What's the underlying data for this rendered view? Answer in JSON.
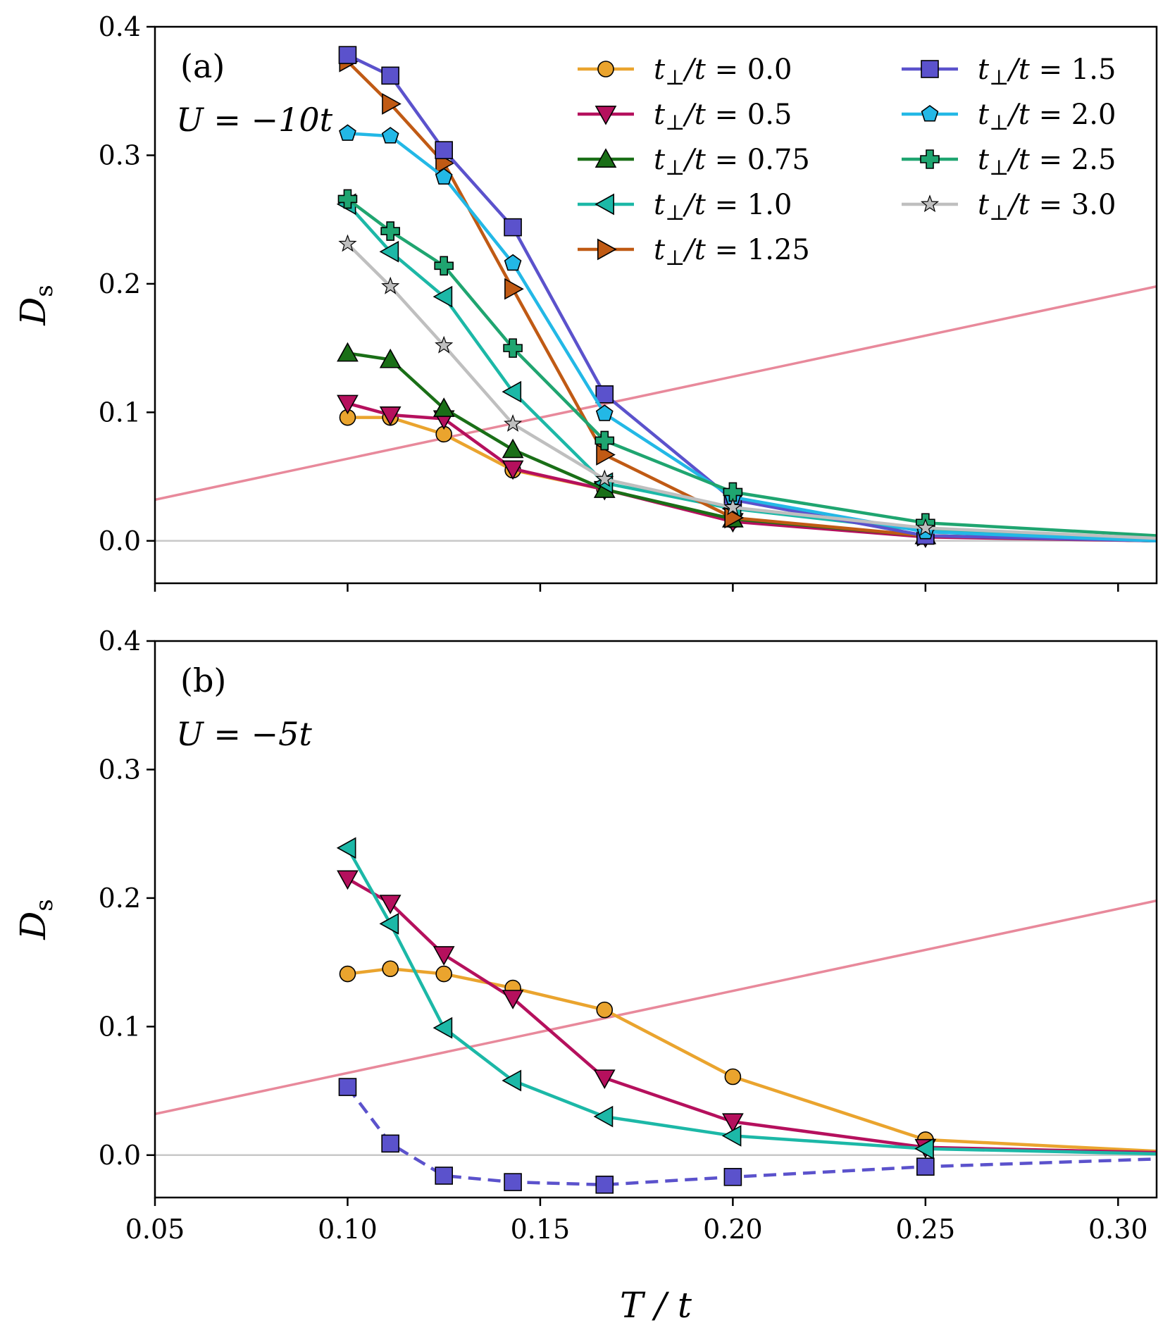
{
  "figure": {
    "xlabel": "T / t",
    "ylabel_main": "D",
    "ylabel_sub": "s",
    "legend_prefix": "t",
    "legend_perp": "⊥",
    "legend_suffix": "/t = "
  },
  "chart_data": [
    {
      "type": "line",
      "panel_label": "(a)",
      "annotation": "U = −10t",
      "xlim": [
        0.05,
        0.31
      ],
      "ylim": [
        -0.033,
        0.4
      ],
      "xticks": [
        "0.05",
        "0.10",
        "0.15",
        "0.20",
        "0.25",
        "0.30"
      ],
      "yticks": [
        "0.0",
        "0.1",
        "0.2",
        "0.3",
        "0.4"
      ],
      "xtick_values": [
        0.05,
        0.1,
        0.15,
        0.2,
        0.25,
        0.3
      ],
      "ytick_values": [
        0.0,
        0.1,
        0.2,
        0.3,
        0.4
      ],
      "xticklabels_visible": false,
      "reference_line": {
        "x": [
          0.05,
          0.31
        ],
        "y": [
          0.032,
          0.198
        ],
        "color": "#e8899b"
      },
      "zero_line_color": "#c8c8c8",
      "series": [
        {
          "name": "0.0",
          "color": "#eaa42e",
          "marker": "circle",
          "x": [
            0.1,
            0.1111,
            0.125,
            0.1429,
            0.1667,
            0.2,
            0.25,
            0.31
          ],
          "y": [
            0.096,
            0.096,
            0.083,
            0.055,
            0.04,
            0.016,
            0.004,
            0.0
          ]
        },
        {
          "name": "0.5",
          "color": "#b5105d",
          "marker": "triangle-down",
          "x": [
            0.1,
            0.1111,
            0.125,
            0.1429,
            0.1667,
            0.2,
            0.25,
            0.31
          ],
          "y": [
            0.107,
            0.098,
            0.095,
            0.056,
            0.04,
            0.015,
            0.003,
            0.0
          ]
        },
        {
          "name": "0.75",
          "color": "#1a6f17",
          "marker": "triangle-up",
          "x": [
            0.1,
            0.1111,
            0.125,
            0.1429,
            0.1667,
            0.2,
            0.25,
            0.31
          ],
          "y": [
            0.146,
            0.141,
            0.103,
            0.071,
            0.04,
            0.017,
            0.004,
            0.0
          ]
        },
        {
          "name": "1.0",
          "color": "#1cb8a7",
          "marker": "triangle-left",
          "x": [
            0.1,
            0.1111,
            0.125,
            0.1429,
            0.1667,
            0.2,
            0.25,
            0.31
          ],
          "y": [
            0.262,
            0.225,
            0.19,
            0.116,
            0.045,
            0.025,
            0.008,
            0.0
          ]
        },
        {
          "name": "1.25",
          "color": "#c05a14",
          "marker": "triangle-right",
          "x": [
            0.1,
            0.1111,
            0.125,
            0.1429,
            0.1667,
            0.2,
            0.25,
            0.31
          ],
          "y": [
            0.373,
            0.34,
            0.294,
            0.196,
            0.067,
            0.018,
            0.004,
            0.0
          ]
        },
        {
          "name": "1.5",
          "color": "#5b52cc",
          "marker": "square",
          "dashed": false,
          "x": [
            0.1,
            0.1111,
            0.125,
            0.1429,
            0.1667,
            0.2,
            0.25,
            0.31
          ],
          "y": [
            0.378,
            0.362,
            0.304,
            0.244,
            0.114,
            0.032,
            0.004,
            0.0
          ]
        },
        {
          "name": "2.0",
          "color": "#23b8e6",
          "marker": "pentagon",
          "x": [
            0.1,
            0.1111,
            0.125,
            0.1429,
            0.1667,
            0.2,
            0.25,
            0.31
          ],
          "y": [
            0.317,
            0.315,
            0.283,
            0.216,
            0.099,
            0.034,
            0.007,
            0.0
          ]
        },
        {
          "name": "2.5",
          "color": "#1fa570",
          "marker": "plus",
          "x": [
            0.1,
            0.1111,
            0.125,
            0.1429,
            0.1667,
            0.2,
            0.25,
            0.31
          ],
          "y": [
            0.266,
            0.241,
            0.214,
            0.15,
            0.078,
            0.038,
            0.014,
            0.004
          ]
        },
        {
          "name": "3.0",
          "color": "#bfbfbf",
          "marker": "star",
          "x": [
            0.1,
            0.1111,
            0.125,
            0.1429,
            0.1667,
            0.2,
            0.25,
            0.31
          ],
          "y": [
            0.231,
            0.198,
            0.152,
            0.091,
            0.048,
            0.026,
            0.01,
            0.002
          ]
        }
      ]
    },
    {
      "type": "line",
      "panel_label": "(b)",
      "annotation": "U = −5t",
      "xlim": [
        0.05,
        0.31
      ],
      "ylim": [
        -0.033,
        0.4
      ],
      "xticks": [
        "0.05",
        "0.10",
        "0.15",
        "0.20",
        "0.25",
        "0.30"
      ],
      "yticks": [
        "0.0",
        "0.1",
        "0.2",
        "0.3",
        "0.4"
      ],
      "xtick_values": [
        0.05,
        0.1,
        0.15,
        0.2,
        0.25,
        0.3
      ],
      "ytick_values": [
        0.0,
        0.1,
        0.2,
        0.3,
        0.4
      ],
      "xticklabels_visible": true,
      "reference_line": {
        "x": [
          0.05,
          0.31
        ],
        "y": [
          0.032,
          0.198
        ],
        "color": "#e8899b"
      },
      "zero_line_color": "#c8c8c8",
      "series": [
        {
          "name": "0.0",
          "color": "#eaa42e",
          "marker": "circle",
          "x": [
            0.1,
            0.1111,
            0.125,
            0.1429,
            0.1667,
            0.2,
            0.25,
            0.31
          ],
          "y": [
            0.141,
            0.145,
            0.141,
            0.13,
            0.113,
            0.061,
            0.012,
            0.003
          ]
        },
        {
          "name": "0.5",
          "color": "#b5105d",
          "marker": "triangle-down",
          "x": [
            0.1,
            0.1111,
            0.125,
            0.1429,
            0.1667,
            0.2,
            0.25,
            0.31
          ],
          "y": [
            0.215,
            0.196,
            0.156,
            0.122,
            0.06,
            0.026,
            0.006,
            0.002
          ]
        },
        {
          "name": "1.0",
          "color": "#1cb8a7",
          "marker": "triangle-left",
          "x": [
            0.1,
            0.1111,
            0.125,
            0.1429,
            0.1667,
            0.2,
            0.25,
            0.31
          ],
          "y": [
            0.239,
            0.18,
            0.099,
            0.058,
            0.03,
            0.015,
            0.005,
            0.001
          ]
        },
        {
          "name": "1.5",
          "color": "#5b52cc",
          "marker": "square",
          "dashed": true,
          "x": [
            0.1,
            0.1111,
            0.125,
            0.1429,
            0.1667,
            0.2,
            0.25,
            0.31
          ],
          "y": [
            0.053,
            0.009,
            -0.016,
            -0.021,
            -0.023,
            -0.017,
            -0.009,
            -0.003
          ]
        }
      ]
    }
  ],
  "legend": {
    "markers_with_lines": true,
    "order": [
      "0.0",
      "0.5",
      "0.75",
      "1.0",
      "1.25",
      "1.5",
      "2.0",
      "2.5",
      "3.0"
    ]
  }
}
